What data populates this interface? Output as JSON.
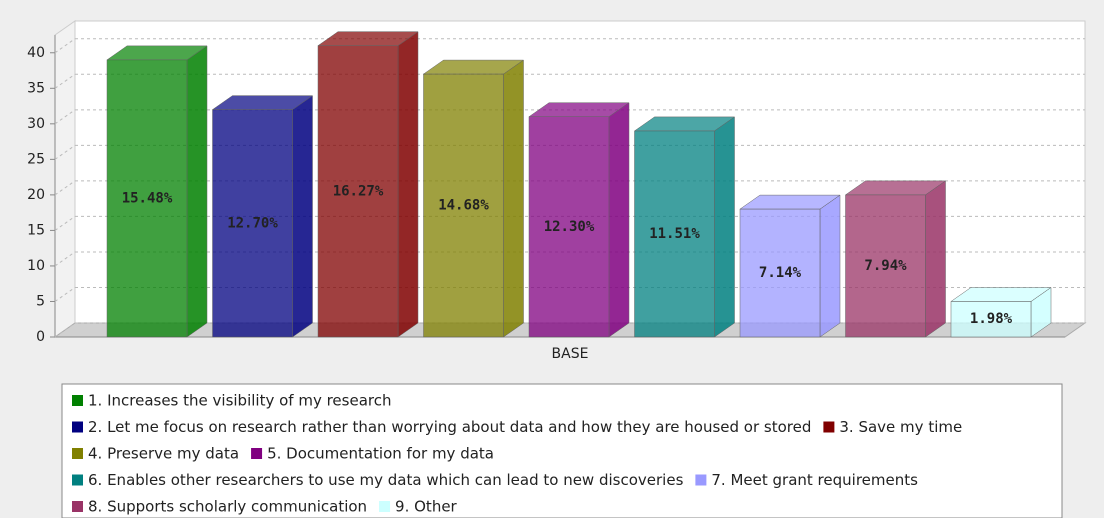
{
  "chart_data": {
    "type": "bar3d",
    "categories": [
      "BASE"
    ],
    "series": [
      {
        "name": "1. Increases the visibility of my research",
        "color": "#008000",
        "values": [
          39
        ],
        "share_labels": [
          "15.48%"
        ]
      },
      {
        "name": "2. Let me focus on research rather than worrying about data and how they are housed or stored",
        "color": "#000080",
        "values": [
          32
        ],
        "share_labels": [
          "12.70%"
        ]
      },
      {
        "name": "3. Save my time",
        "color": "#800000",
        "values": [
          41
        ],
        "share_labels": [
          "16.27%"
        ]
      },
      {
        "name": "4. Preserve my data",
        "color": "#808000",
        "values": [
          37
        ],
        "share_labels": [
          "14.68%"
        ]
      },
      {
        "name": "5. Documentation for my data",
        "color": "#800080",
        "values": [
          31
        ],
        "share_labels": [
          "12.30%"
        ]
      },
      {
        "name": "6. Enables other researchers to use my data which can lead to new discoveries",
        "color": "#008080",
        "values": [
          29
        ],
        "share_labels": [
          "11.51%"
        ]
      },
      {
        "name": "7. Meet grant requirements",
        "color": "#9999ff",
        "values": [
          18
        ],
        "share_labels": [
          "7.14%"
        ]
      },
      {
        "name": "8. Supports scholarly communication",
        "color": "#993366",
        "values": [
          20
        ],
        "share_labels": [
          "7.94%"
        ]
      },
      {
        "name": "9. Other",
        "color": "#ccffff",
        "values": [
          5
        ],
        "share_labels": [
          "1.98%"
        ]
      }
    ],
    "ylim": [
      0,
      42.5
    ],
    "yticks": [
      0,
      5,
      10,
      15,
      20,
      25,
      30,
      35,
      40
    ],
    "grid": true,
    "legend": "bottom"
  }
}
